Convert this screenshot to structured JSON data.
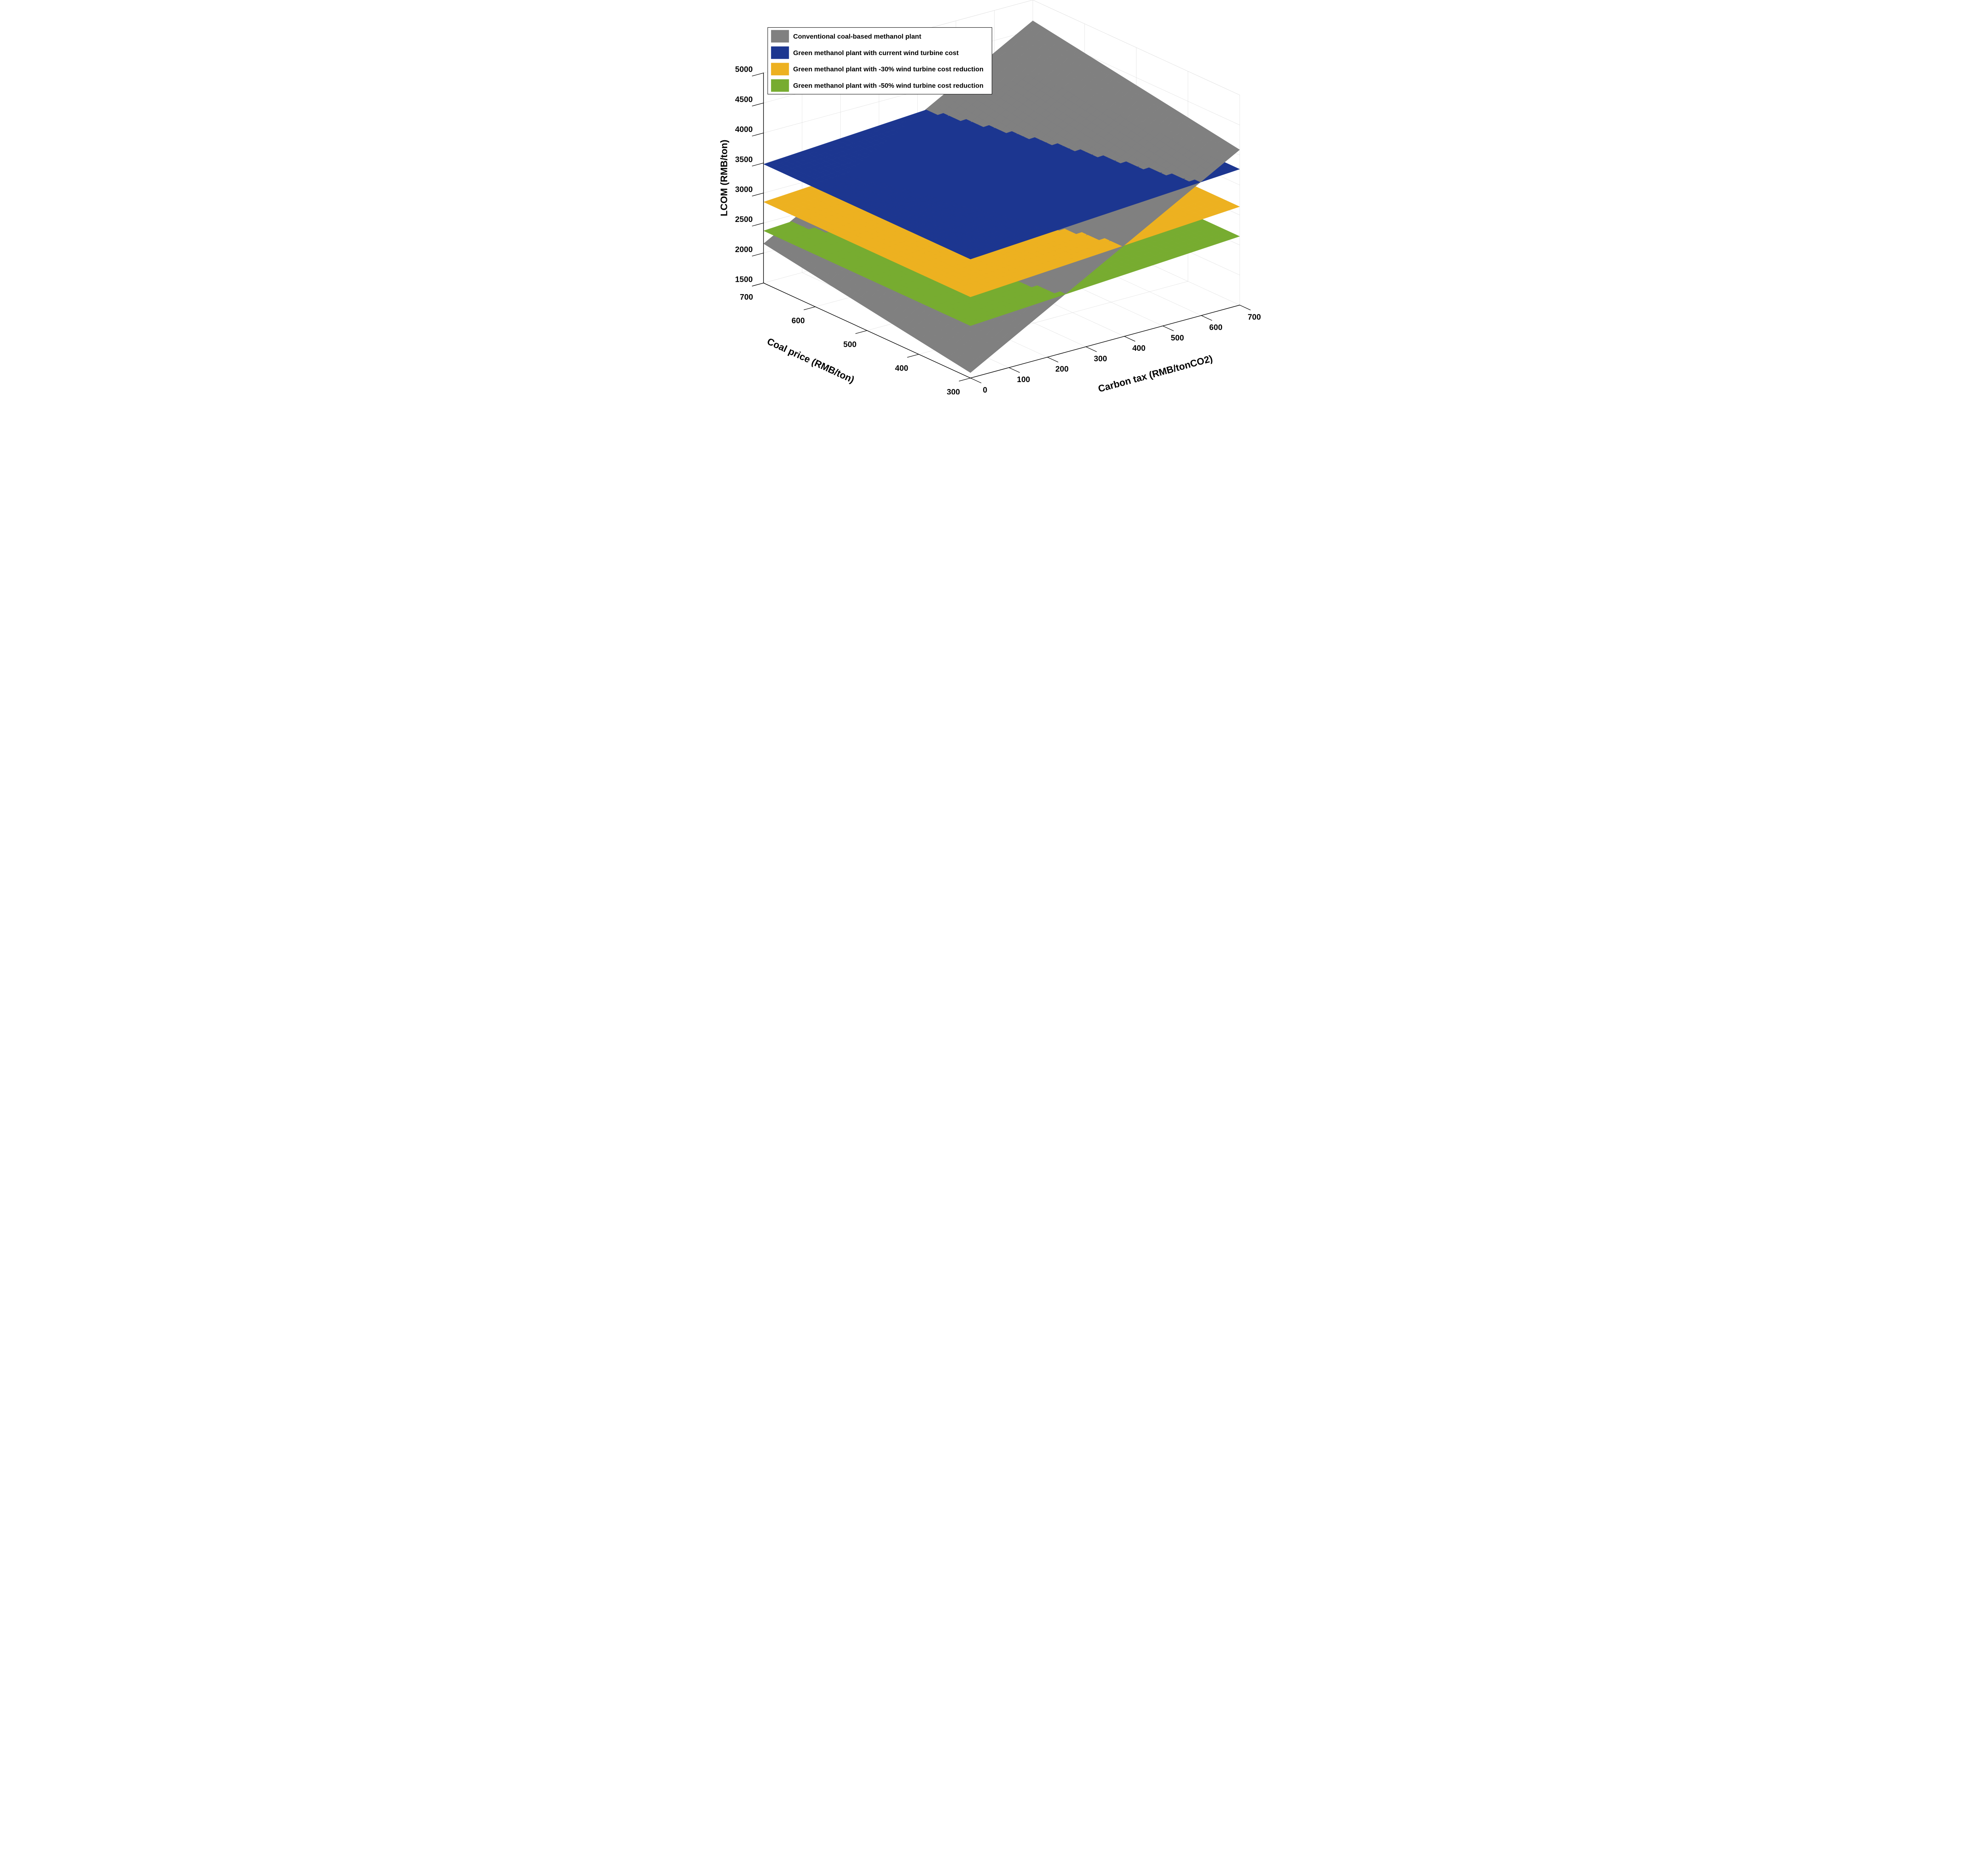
{
  "figure": {
    "background": "#ffffff",
    "grid_color": "#d9d9d9",
    "axis_color": "#000000"
  },
  "legend": {
    "position": "top-left",
    "border_color": "#000000",
    "background": "#ffffff",
    "items": [
      {
        "label": "Conventional coal-based methanol plant",
        "color": "#808080"
      },
      {
        "label": "Green methanol plant with current wind turbine cost",
        "color": "#1C3690"
      },
      {
        "label": "Green methanol plant with -30% wind turbine cost reduction",
        "color": "#EDB120"
      },
      {
        "label": "Green methanol plant with -50% wind turbine cost reduction",
        "color": "#77AC30"
      }
    ]
  },
  "chart_data": {
    "type": "surface",
    "projection": "3d, MATLAB-like view (az ~ -37.5, el ~ 30), orthographic",
    "x_axis": {
      "label": "Coal price (RMB/ton)",
      "min": 300,
      "max": 700,
      "ticks": [
        700,
        600,
        500,
        400,
        300
      ]
    },
    "y_axis": {
      "label": "Carbon tax (RMB/tonCO2)",
      "min": 0,
      "max": 700,
      "ticks": [
        0,
        100,
        200,
        300,
        400,
        500,
        600,
        700
      ]
    },
    "z_axis": {
      "label": "LCOM (RMB/ton)",
      "min": 1500,
      "max": 5000,
      "ticks": [
        1500,
        2000,
        2500,
        3000,
        3500,
        4000,
        4500,
        5000
      ]
    },
    "grid": "on",
    "legend_position": "top-left inside figure",
    "surfaces": [
      {
        "name": "Conventional coal-based methanol plant",
        "color": "#808080",
        "plane": {
          "intercept": 1163,
          "coal_coef": 1.4175,
          "tax_coef": 3.5714
        },
        "values_at_corners": {
          "coal300_tax0": 1588,
          "coal700_tax0": 2155,
          "coal300_tax700": 4088,
          "coal700_tax700": 4655
        }
      },
      {
        "name": "Green methanol plant with current wind turbine cost",
        "color": "#1C3690",
        "plane": {
          "intercept": 3480,
          "coal_coef": 0,
          "tax_coef": 0.407
        },
        "values_at_corners": {
          "coal300_tax0": 3480,
          "coal700_tax0": 3480,
          "coal300_tax700": 3765,
          "coal700_tax700": 3765
        }
      },
      {
        "name": "Green methanol plant with -30% wind turbine cost reduction",
        "color": "#EDB120",
        "plane": {
          "intercept": 2850,
          "coal_coef": 0,
          "tax_coef": 0.414
        },
        "values_at_corners": {
          "coal300_tax0": 2850,
          "coal700_tax0": 2850,
          "coal300_tax700": 3140,
          "coal700_tax700": 3140
        }
      },
      {
        "name": "Green methanol plant with -50% wind turbine cost reduction",
        "color": "#77AC30",
        "plane": {
          "intercept": 2370,
          "coal_coef": 0,
          "tax_coef": 0.393
        },
        "values_at_corners": {
          "coal300_tax0": 2370,
          "coal700_tax0": 2370,
          "coal300_tax700": 2645,
          "coal700_tax700": 2645
        }
      }
    ]
  }
}
